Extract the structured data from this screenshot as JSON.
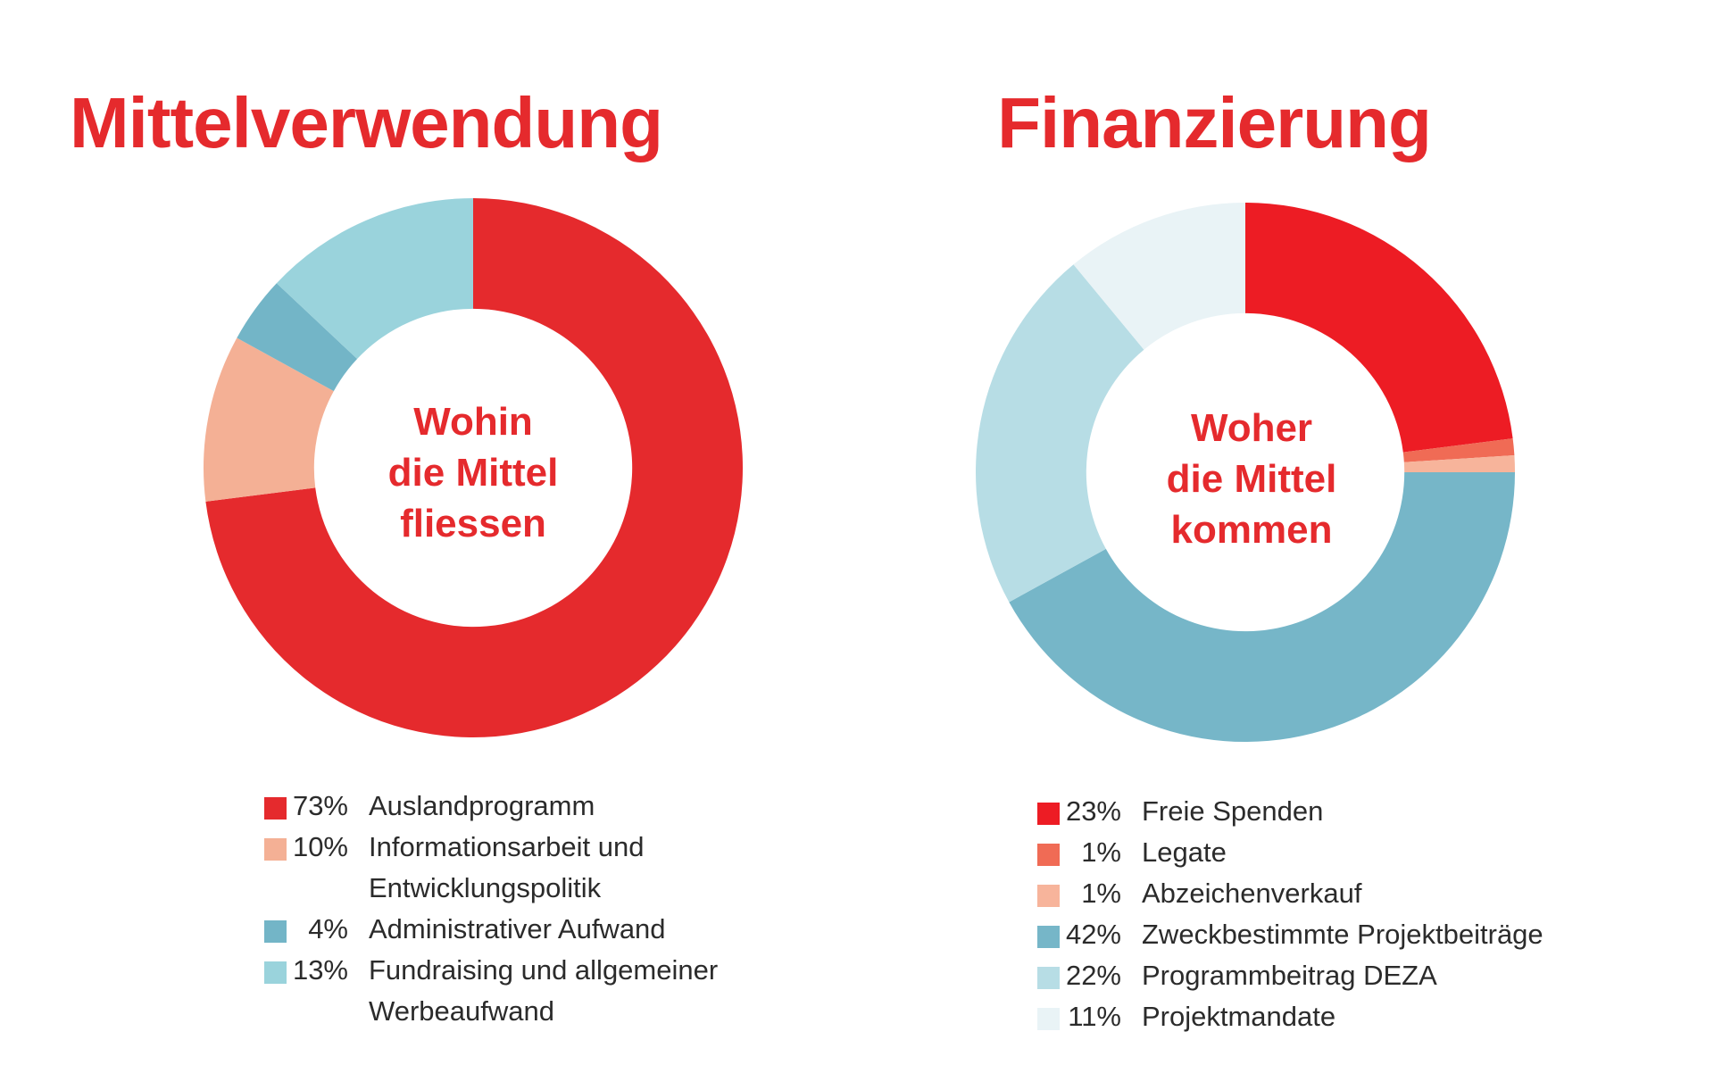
{
  "chart_data": [
    {
      "type": "pie",
      "title": "Mittelverwendung",
      "center_label": [
        "Wohin",
        "die Mittel",
        "fliessen"
      ],
      "hole_fraction": 0.59,
      "slices": [
        {
          "label_lines": [
            "Auslandprogramm"
          ],
          "value": 73,
          "pct": "73%",
          "color": "#e52a2d"
        },
        {
          "label_lines": [
            "Informationsarbeit und",
            "Entwicklungspolitik"
          ],
          "value": 10,
          "pct": "10%",
          "color": "#f4b095"
        },
        {
          "label_lines": [
            "Administrativer Aufwand"
          ],
          "value": 4,
          "pct": "4%",
          "color": "#73b5c7"
        },
        {
          "label_lines": [
            "Fundraising und allgemeiner",
            "Werbeaufwand"
          ],
          "value": 13,
          "pct": "13%",
          "color": "#9ad3dc"
        }
      ]
    },
    {
      "type": "pie",
      "title": "Finanzierung",
      "center_label": [
        "Woher",
        "die Mittel",
        "kommen"
      ],
      "hole_fraction": 0.59,
      "slices": [
        {
          "label_lines": [
            "Freie Spenden"
          ],
          "value": 23,
          "pct": "23%",
          "color": "#ed1c24"
        },
        {
          "label_lines": [
            "Legate"
          ],
          "value": 1,
          "pct": "1%",
          "color": "#f06b55"
        },
        {
          "label_lines": [
            "Abzeichenverkauf"
          ],
          "value": 1,
          "pct": "1%",
          "color": "#f7b49b"
        },
        {
          "label_lines": [
            "Zweckbestimmte Projektbeiträge"
          ],
          "value": 42,
          "pct": "42%",
          "color": "#76b6c8"
        },
        {
          "label_lines": [
            "Programmbeitrag DEZA"
          ],
          "value": 22,
          "pct": "22%",
          "color": "#b7dde5"
        },
        {
          "label_lines": [
            "Projektmandate"
          ],
          "value": 11,
          "pct": "11%",
          "color": "#e9f3f6"
        }
      ]
    }
  ]
}
